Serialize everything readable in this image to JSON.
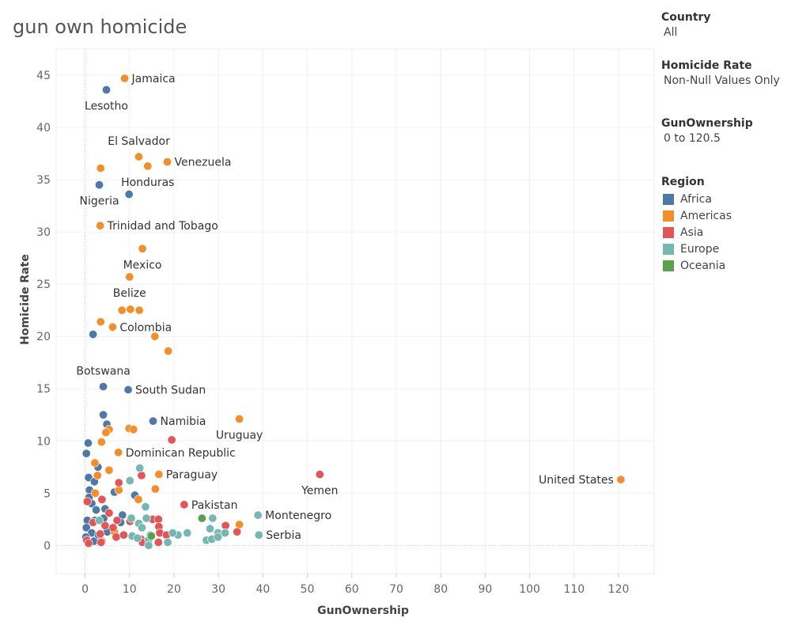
{
  "page": {
    "title": "gun own homicide"
  },
  "filters": [
    {
      "title": "Country",
      "value": "All"
    },
    {
      "title": "Homicide Rate",
      "value": "Non-Null Values Only"
    },
    {
      "title": "GunOwnership",
      "value": "0 to 120.5"
    }
  ],
  "legend": {
    "title": "Region",
    "items": [
      {
        "label": "Africa",
        "color": "#4e79a7"
      },
      {
        "label": "Americas",
        "color": "#f28e2b"
      },
      {
        "label": "Asia",
        "color": "#e15759"
      },
      {
        "label": "Europe",
        "color": "#76b7b2"
      },
      {
        "label": "Oceania",
        "color": "#59a14f"
      }
    ]
  },
  "chart_data": {
    "type": "scatter",
    "title": "gun own homicide",
    "xlabel": "GunOwnership",
    "ylabel": "Homicide Rate",
    "xlim": [
      -6.5,
      128
    ],
    "ylim": [
      -2.7,
      47.5
    ],
    "xticks": [
      0,
      10,
      20,
      30,
      40,
      50,
      60,
      70,
      80,
      90,
      100,
      110,
      120
    ],
    "yticks": [
      0,
      5,
      10,
      15,
      20,
      25,
      30,
      35,
      40,
      45
    ],
    "grid": true,
    "legend_position": "right",
    "series": [
      {
        "name": "Africa",
        "color": "#4e79a7",
        "points": [
          {
            "x": 4.8,
            "y": 43.6,
            "label": "Lesotho",
            "label_pos": "below"
          },
          {
            "x": 3.2,
            "y": 34.5,
            "label": "Nigeria",
            "label_pos": "below"
          },
          {
            "x": 9.9,
            "y": 33.6
          },
          {
            "x": 1.8,
            "y": 20.2
          },
          {
            "x": 4.1,
            "y": 15.2,
            "label": "Botswana",
            "label_pos": "above"
          },
          {
            "x": 9.7,
            "y": 14.9,
            "label": "South Sudan",
            "label_pos": "right"
          },
          {
            "x": 4.1,
            "y": 12.5
          },
          {
            "x": 4.9,
            "y": 11.6
          },
          {
            "x": 15.3,
            "y": 11.9,
            "label": "Namibia",
            "label_pos": "right"
          },
          {
            "x": 0.7,
            "y": 9.8
          },
          {
            "x": 0.3,
            "y": 8.8
          },
          {
            "x": 2.9,
            "y": 7.5
          },
          {
            "x": 0.8,
            "y": 6.5
          },
          {
            "x": 2.1,
            "y": 6.1
          },
          {
            "x": 1.0,
            "y": 5.3
          },
          {
            "x": 0.9,
            "y": 4.6
          },
          {
            "x": 6.6,
            "y": 5.1
          },
          {
            "x": 11.2,
            "y": 4.8
          },
          {
            "x": 1.5,
            "y": 4.0
          },
          {
            "x": 2.5,
            "y": 3.4
          },
          {
            "x": 4.5,
            "y": 3.5
          },
          {
            "x": 8.4,
            "y": 2.9
          },
          {
            "x": 0.5,
            "y": 2.4
          },
          {
            "x": 2.2,
            "y": 2.4
          },
          {
            "x": 4.2,
            "y": 2.6
          },
          {
            "x": 8.0,
            "y": 2.2
          },
          {
            "x": 0.3,
            "y": 1.7
          },
          {
            "x": 1.5,
            "y": 1.2
          },
          {
            "x": 5.0,
            "y": 1.3
          },
          {
            "x": 0.2,
            "y": 0.8
          },
          {
            "x": 2.0,
            "y": 0.4
          },
          {
            "x": 3.0,
            "y": 1.0
          }
        ]
      },
      {
        "name": "Americas",
        "color": "#f28e2b",
        "points": [
          {
            "x": 8.9,
            "y": 44.7,
            "label": "Jamaica",
            "label_pos": "right"
          },
          {
            "x": 12.1,
            "y": 37.2,
            "label": "El Salvador",
            "label_pos": "above"
          },
          {
            "x": 3.5,
            "y": 36.1
          },
          {
            "x": 14.1,
            "y": 36.3,
            "label": "Honduras",
            "label_pos": "below"
          },
          {
            "x": 18.5,
            "y": 36.7,
            "label": "Venezuela",
            "label_pos": "right"
          },
          {
            "x": 3.4,
            "y": 30.6,
            "label": "Trinidad and Tobago",
            "label_pos": "right"
          },
          {
            "x": 12.9,
            "y": 28.4,
            "label": "Mexico",
            "label_pos": "below"
          },
          {
            "x": 10.0,
            "y": 25.7,
            "label": "Belize",
            "label_pos": "below"
          },
          {
            "x": 8.3,
            "y": 22.5
          },
          {
            "x": 10.2,
            "y": 22.6
          },
          {
            "x": 12.2,
            "y": 22.5
          },
          {
            "x": 3.5,
            "y": 21.4
          },
          {
            "x": 6.2,
            "y": 20.9,
            "label": "Colombia",
            "label_pos": "right"
          },
          {
            "x": 15.7,
            "y": 20.0
          },
          {
            "x": 18.7,
            "y": 18.6
          },
          {
            "x": 34.7,
            "y": 12.1,
            "label": "Uruguay",
            "label_pos": "below"
          },
          {
            "x": 5.4,
            "y": 11.1
          },
          {
            "x": 9.9,
            "y": 11.2
          },
          {
            "x": 10.9,
            "y": 11.1
          },
          {
            "x": 4.7,
            "y": 10.8
          },
          {
            "x": 3.7,
            "y": 9.9
          },
          {
            "x": 7.5,
            "y": 8.9,
            "label": "Dominican Republic",
            "label_pos": "right"
          },
          {
            "x": 2.2,
            "y": 7.9
          },
          {
            "x": 5.4,
            "y": 7.2
          },
          {
            "x": 16.6,
            "y": 6.8,
            "label": "Paraguay",
            "label_pos": "right"
          },
          {
            "x": 2.8,
            "y": 6.7
          },
          {
            "x": 7.6,
            "y": 5.3
          },
          {
            "x": 15.8,
            "y": 5.4
          },
          {
            "x": 2.3,
            "y": 5.0
          },
          {
            "x": 12.0,
            "y": 4.4
          },
          {
            "x": 120.5,
            "y": 6.3,
            "label": "United States",
            "label_pos": "left"
          },
          {
            "x": 34.7,
            "y": 2.0
          },
          {
            "x": 6.6,
            "y": 1.3
          },
          {
            "x": 3.8,
            "y": 0.4
          }
        ]
      },
      {
        "name": "Asia",
        "color": "#e15759",
        "points": [
          {
            "x": 19.5,
            "y": 10.1
          },
          {
            "x": 52.8,
            "y": 6.8,
            "label": "Yemen",
            "label_pos": "below"
          },
          {
            "x": 7.6,
            "y": 6.0
          },
          {
            "x": 12.7,
            "y": 6.7
          },
          {
            "x": 22.3,
            "y": 3.9,
            "label": "Pakistan",
            "label_pos": "right"
          },
          {
            "x": 0.5,
            "y": 4.2
          },
          {
            "x": 3.8,
            "y": 4.4
          },
          {
            "x": 5.4,
            "y": 3.1
          },
          {
            "x": 7.2,
            "y": 2.4
          },
          {
            "x": 10.1,
            "y": 2.3
          },
          {
            "x": 15.2,
            "y": 2.5
          },
          {
            "x": 16.5,
            "y": 2.5
          },
          {
            "x": 1.8,
            "y": 2.2
          },
          {
            "x": 4.5,
            "y": 1.9
          },
          {
            "x": 6.3,
            "y": 1.7
          },
          {
            "x": 16.6,
            "y": 1.8
          },
          {
            "x": 31.6,
            "y": 1.9
          },
          {
            "x": 3.4,
            "y": 1.1
          },
          {
            "x": 7.0,
            "y": 0.8
          },
          {
            "x": 8.7,
            "y": 1.0
          },
          {
            "x": 12.6,
            "y": 0.6
          },
          {
            "x": 16.8,
            "y": 1.2
          },
          {
            "x": 18.3,
            "y": 1.0
          },
          {
            "x": 34.2,
            "y": 1.3
          },
          {
            "x": 0.4,
            "y": 0.5
          },
          {
            "x": 0.8,
            "y": 0.2
          },
          {
            "x": 3.6,
            "y": 0.3
          },
          {
            "x": 12.9,
            "y": 0.3
          },
          {
            "x": 16.5,
            "y": 0.3
          }
        ]
      },
      {
        "name": "Europe",
        "color": "#76b7b2",
        "points": [
          {
            "x": 12.3,
            "y": 7.4
          },
          {
            "x": 10.1,
            "y": 6.2
          },
          {
            "x": 38.9,
            "y": 2.9,
            "label": "Montenegro",
            "label_pos": "right"
          },
          {
            "x": 39.1,
            "y": 1.0,
            "label": "Serbia",
            "label_pos": "right"
          },
          {
            "x": 13.6,
            "y": 3.7
          },
          {
            "x": 10.4,
            "y": 2.6
          },
          {
            "x": 13.8,
            "y": 2.6
          },
          {
            "x": 28.7,
            "y": 2.6
          },
          {
            "x": 3.2,
            "y": 2.4
          },
          {
            "x": 12.1,
            "y": 2.1
          },
          {
            "x": 12.8,
            "y": 1.7
          },
          {
            "x": 28.1,
            "y": 1.6
          },
          {
            "x": 23.0,
            "y": 1.2
          },
          {
            "x": 20.9,
            "y": 1.0
          },
          {
            "x": 19.7,
            "y": 1.2
          },
          {
            "x": 14.7,
            "y": 1.0
          },
          {
            "x": 10.6,
            "y": 0.9
          },
          {
            "x": 29.9,
            "y": 1.2
          },
          {
            "x": 31.5,
            "y": 1.2
          },
          {
            "x": 27.3,
            "y": 0.5
          },
          {
            "x": 28.5,
            "y": 0.6
          },
          {
            "x": 29.9,
            "y": 0.8
          },
          {
            "x": 14.3,
            "y": 0.5
          },
          {
            "x": 18.6,
            "y": 0.3
          },
          {
            "x": 14.3,
            "y": 0.0
          },
          {
            "x": 11.8,
            "y": 0.7
          }
        ]
      },
      {
        "name": "Oceania",
        "color": "#59a14f",
        "points": [
          {
            "x": 26.3,
            "y": 2.6
          },
          {
            "x": 14.9,
            "y": 0.9
          }
        ]
      }
    ]
  }
}
